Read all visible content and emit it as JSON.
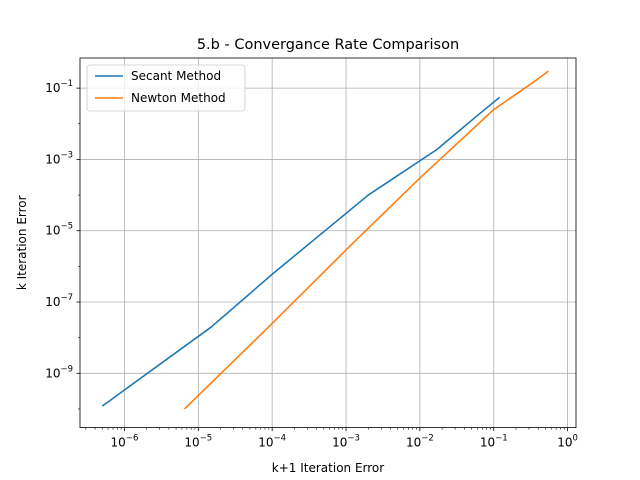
{
  "chart_data": {
    "type": "line",
    "title": "5.b - Convergance Rate Comparison",
    "xlabel": "k+1 Iteration Error",
    "ylabel": "k Iteration Error",
    "xscale": "log",
    "yscale": "log",
    "xlim": [
      2.5e-07,
      1.3
    ],
    "ylim": [
      3e-11,
      0.7
    ],
    "grid": true,
    "legend": "top-left",
    "x_ticks": [
      {
        "exp": "-6",
        "value": 1e-06
      },
      {
        "exp": "-5",
        "value": 1e-05
      },
      {
        "exp": "-4",
        "value": 0.0001
      },
      {
        "exp": "-3",
        "value": 0.001
      },
      {
        "exp": "-2",
        "value": 0.01
      },
      {
        "exp": "-1",
        "value": 0.1
      },
      {
        "exp": "0",
        "value": 1
      }
    ],
    "y_ticks": [
      {
        "exp": "-9",
        "value": 1e-09
      },
      {
        "exp": "-7",
        "value": 1e-07
      },
      {
        "exp": "-5",
        "value": 1e-05
      },
      {
        "exp": "-3",
        "value": 0.001
      },
      {
        "exp": "-1",
        "value": 0.1
      }
    ],
    "series": [
      {
        "name": "Secant Method",
        "color": "#1f77b4",
        "x": [
          5e-07,
          1.5e-05,
          0.0001,
          0.002,
          0.017,
          0.06,
          0.12
        ],
        "y": [
          1.2e-10,
          2e-08,
          6e-07,
          0.0001,
          0.0019,
          0.017,
          0.055
        ]
      },
      {
        "name": "Newton Method",
        "color": "#ff7f0e",
        "x": [
          6.5e-06,
          0.0001,
          0.0012,
          0.01,
          0.1,
          0.3,
          0.55
        ],
        "y": [
          1e-10,
          2.5e-08,
          4.2e-06,
          0.0003,
          0.025,
          0.12,
          0.3
        ]
      }
    ]
  }
}
